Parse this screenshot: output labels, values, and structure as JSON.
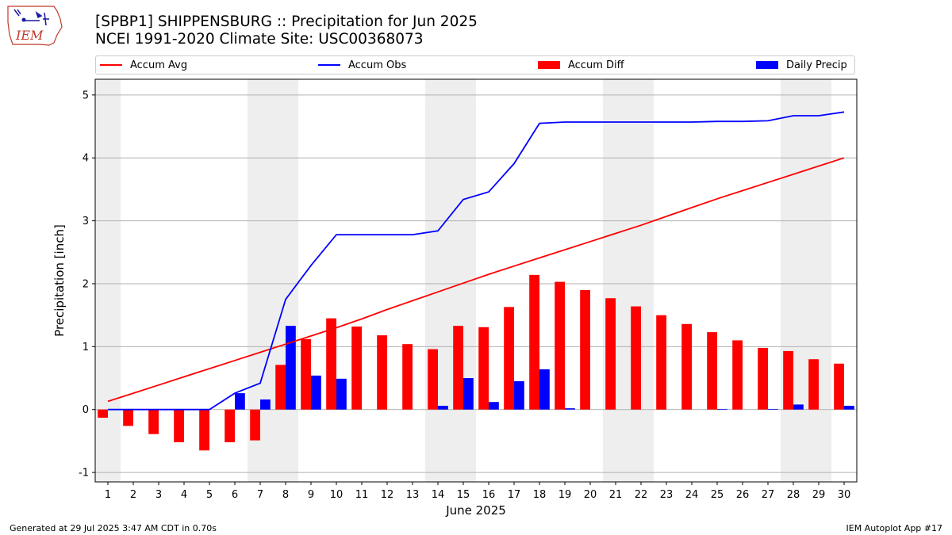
{
  "header": {
    "logo_text": "IEM",
    "title_line1": "[SPBP1] SHIPPENSBURG :: Precipitation for Jun 2025",
    "title_line2": "NCEI 1991-2020 Climate Site: USC00368073"
  },
  "legend": {
    "accum_avg": "Accum Avg",
    "accum_obs": "Accum Obs",
    "accum_diff": "Accum Diff",
    "daily_precip": "Daily Precip"
  },
  "footer": {
    "left": "Generated at 29 Jul 2025 3:47 AM CDT in 0.70s",
    "right": "IEM Autoplot App #17"
  },
  "colors": {
    "accum_avg": "#ff0000",
    "accum_obs": "#0000ff",
    "accum_diff": "#ff0000",
    "daily_precip": "#0000ff",
    "weekend_shade": "#eeeeee",
    "grid": "#b0b0b0"
  },
  "chart_data": {
    "type": "bar",
    "xlabel": "June 2025",
    "ylabel": "Precipitation [inch]",
    "ylim": [
      -1.15,
      5.25
    ],
    "yticks": [
      -1,
      0,
      1,
      2,
      3,
      4,
      5
    ],
    "grid": "horizontal",
    "legend_position": "top",
    "days": [
      1,
      2,
      3,
      4,
      5,
      6,
      7,
      8,
      9,
      10,
      11,
      12,
      13,
      14,
      15,
      16,
      17,
      18,
      19,
      20,
      21,
      22,
      23,
      24,
      25,
      26,
      27,
      28,
      29,
      30
    ],
    "shaded_days": [
      1,
      7,
      8,
      14,
      15,
      21,
      22,
      28,
      29
    ],
    "series": [
      {
        "name": "Accum Avg",
        "kind": "line",
        "values": [
          0.13,
          0.26,
          0.39,
          0.52,
          0.65,
          0.78,
          0.91,
          1.04,
          1.17,
          1.3,
          1.44,
          1.59,
          1.73,
          1.87,
          2.01,
          2.15,
          2.28,
          2.41,
          2.54,
          2.67,
          2.8,
          2.93,
          3.07,
          3.21,
          3.35,
          3.48,
          3.61,
          3.74,
          3.87,
          4.0
        ]
      },
      {
        "name": "Accum Obs",
        "kind": "line",
        "values": [
          0.0,
          0.0,
          0.0,
          0.0,
          0.0,
          0.26,
          0.42,
          1.75,
          2.29,
          2.78,
          2.78,
          2.78,
          2.78,
          2.84,
          3.34,
          3.46,
          3.91,
          4.55,
          4.57,
          4.57,
          4.57,
          4.57,
          4.57,
          4.57,
          4.58,
          4.58,
          4.59,
          4.67,
          4.67,
          4.73
        ]
      },
      {
        "name": "Accum Diff",
        "kind": "bar",
        "values": [
          -0.13,
          -0.26,
          -0.39,
          -0.52,
          -0.65,
          -0.52,
          -0.49,
          0.71,
          1.12,
          1.45,
          1.32,
          1.18,
          1.04,
          0.96,
          1.33,
          1.31,
          1.63,
          2.14,
          2.03,
          1.9,
          1.77,
          1.64,
          1.5,
          1.36,
          1.23,
          1.1,
          0.98,
          0.93,
          0.8,
          0.73
        ]
      },
      {
        "name": "Daily Precip",
        "kind": "bar",
        "values": [
          0.0,
          0.0,
          0.0,
          0.0,
          0.0,
          0.26,
          0.16,
          1.33,
          0.54,
          0.49,
          0.0,
          0.0,
          0.0,
          0.06,
          0.5,
          0.12,
          0.45,
          0.64,
          0.02,
          0.0,
          0.0,
          0.0,
          0.0,
          0.0,
          0.01,
          0.0,
          0.01,
          0.08,
          0.0,
          0.06
        ]
      }
    ]
  }
}
